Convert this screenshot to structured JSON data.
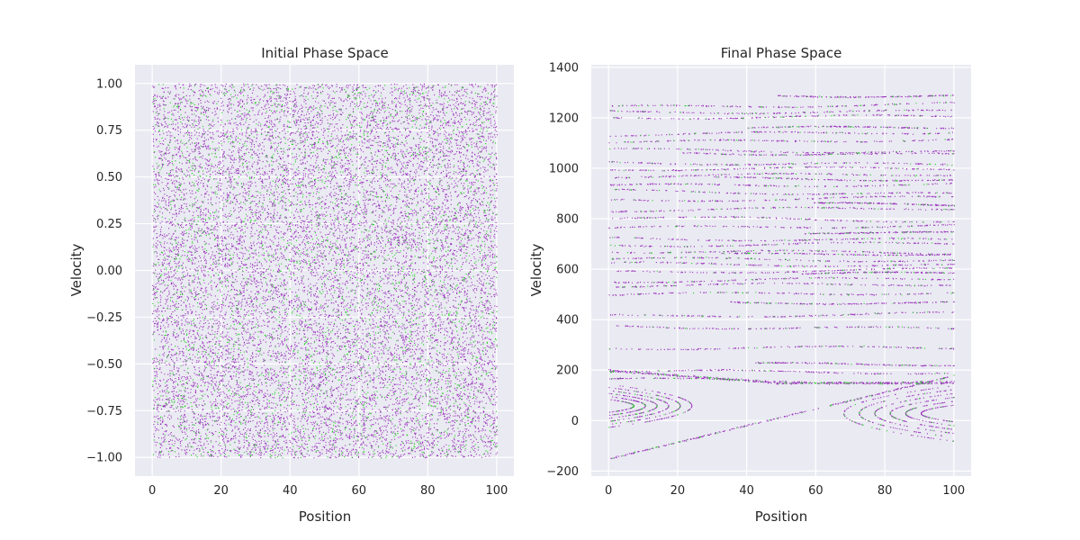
{
  "chart_data": [
    {
      "type": "scatter",
      "title": "Initial Phase Space",
      "xlabel": "Position",
      "ylabel": "Velocity",
      "xlim": [
        -5,
        105
      ],
      "ylim": [
        -1.1,
        1.1
      ],
      "xticks": [
        0,
        20,
        40,
        60,
        80,
        100
      ],
      "yticks": [
        -1.0,
        -0.75,
        -0.5,
        -0.25,
        0.0,
        0.25,
        0.5,
        0.75,
        1.0
      ],
      "xtick_labels": [
        "0",
        "20",
        "40",
        "60",
        "80",
        "100"
      ],
      "ytick_labels": [
        "−1.00",
        "−0.75",
        "−0.50",
        "−0.25",
        "0.00",
        "0.25",
        "0.50",
        "0.75",
        "1.00"
      ],
      "grid": true,
      "distribution": "uniform",
      "x_range": [
        0,
        100
      ],
      "y_range": [
        -1.0,
        1.0
      ],
      "colors": [
        "#9933bb",
        "#22cc22"
      ]
    },
    {
      "type": "scatter",
      "title": "Final Phase Space",
      "xlabel": "Position",
      "ylabel": "Velocity",
      "xlim": [
        -5,
        105
      ],
      "ylim": [
        -220,
        1410
      ],
      "xticks": [
        0,
        20,
        40,
        60,
        80,
        100
      ],
      "yticks": [
        -200,
        0,
        200,
        400,
        600,
        800,
        1000,
        1200,
        1400
      ],
      "xtick_labels": [
        "0",
        "20",
        "40",
        "60",
        "80",
        "100"
      ],
      "ytick_labels": [
        "−200",
        "0",
        "200",
        "400",
        "600",
        "800",
        "1000",
        "1200",
        "1400"
      ],
      "grid": true,
      "bands_y": [
        1290,
        1250,
        1225,
        1205,
        1160,
        1140,
        1110,
        1070,
        1060,
        1020,
        1000,
        975,
        960,
        935,
        905,
        880,
        860,
        840,
        800,
        770,
        750,
        720,
        700,
        670,
        660,
        640,
        620,
        595,
        580,
        560,
        540,
        505,
        470,
        420,
        370,
        290,
        225,
        195,
        160
      ],
      "colors": [
        "#9933bb",
        "#22cc22"
      ]
    }
  ]
}
